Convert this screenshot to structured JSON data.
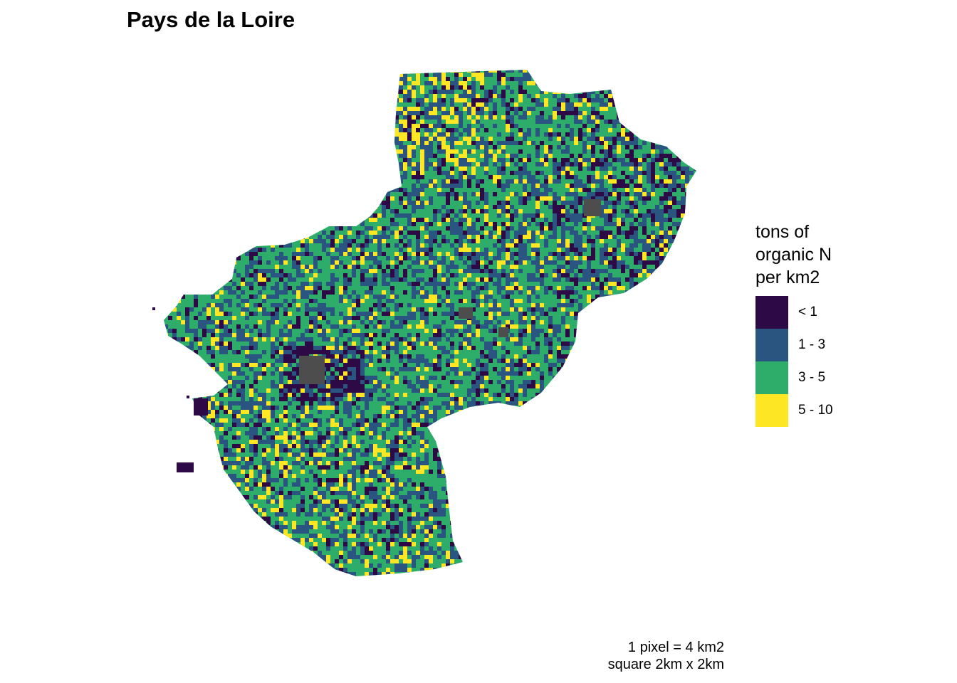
{
  "title": "Pays de la Loire",
  "legend": {
    "title_lines": [
      "tons of",
      "organic N",
      "per km2"
    ],
    "items": [
      {
        "label": "< 1",
        "color": "#2d0a46"
      },
      {
        "label": "1 - 3",
        "color": "#2a5580"
      },
      {
        "label": "3 - 5",
        "color": "#2eac6a"
      },
      {
        "label": "5 - 10",
        "color": "#fde724"
      }
    ]
  },
  "no_data_color": "#4d4d4d",
  "caption_lines": [
    "1 pixel = 4 km2",
    "square 2km x 2km"
  ]
}
